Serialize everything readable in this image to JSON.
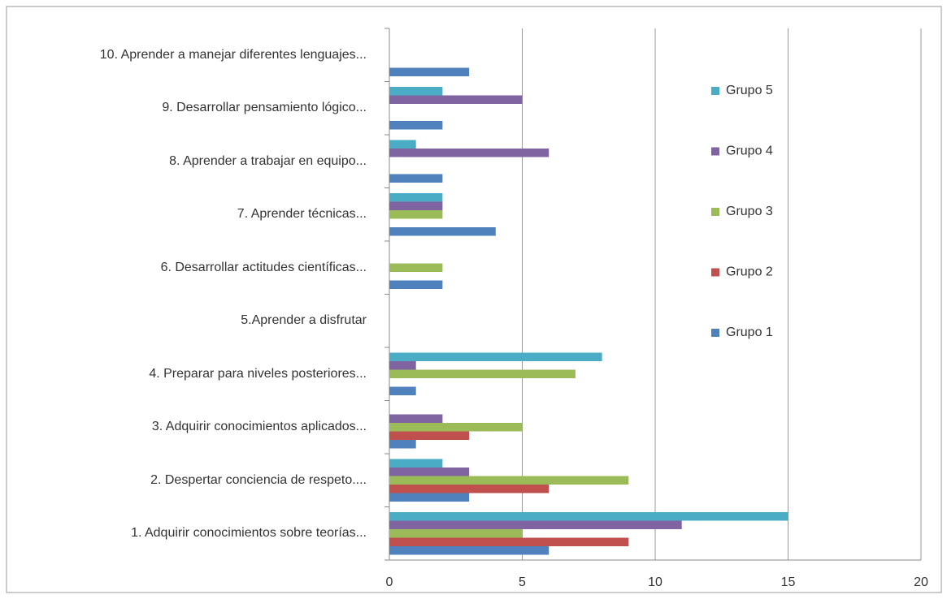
{
  "chart_data": {
    "type": "bar",
    "orientation": "horizontal",
    "categories": [
      "1. Adquirir conocimientos sobre teorías...",
      "2. Despertar conciencia de respeto....",
      "3. Adquirir conocimientos aplicados...",
      "4. Preparar para niveles posteriores...",
      "5.Aprender a disfrutar",
      "6. Desarrollar actitudes científicas...",
      "7. Aprender técnicas...",
      "8. Aprender a trabajar en equipo...",
      "9. Desarrollar pensamiento lógico...",
      "10. Aprender a manejar diferentes lenguajes..."
    ],
    "series": [
      {
        "name": "Grupo 1",
        "color": "#4f81bd",
        "values": [
          6,
          3,
          1,
          1,
          0,
          2,
          4,
          2,
          2,
          3
        ]
      },
      {
        "name": "Grupo 2",
        "color": "#c0504d",
        "values": [
          9,
          6,
          3,
          0,
          0,
          0,
          0,
          0,
          0,
          0
        ]
      },
      {
        "name": "Grupo 3",
        "color": "#9bbb59",
        "values": [
          5,
          9,
          5,
          7,
          0,
          2,
          2,
          0,
          0,
          0
        ]
      },
      {
        "name": "Grupo 4",
        "color": "#8064a2",
        "values": [
          11,
          3,
          2,
          1,
          0,
          0,
          2,
          6,
          5,
          0
        ]
      },
      {
        "name": "Grupo 5",
        "color": "#4bacc6",
        "values": [
          15,
          2,
          0,
          8,
          0,
          0,
          2,
          1,
          2,
          0
        ]
      }
    ],
    "xlim": [
      0,
      20
    ],
    "xticks": [
      0,
      5,
      10,
      15,
      20
    ],
    "grid": true,
    "legend": "right"
  }
}
